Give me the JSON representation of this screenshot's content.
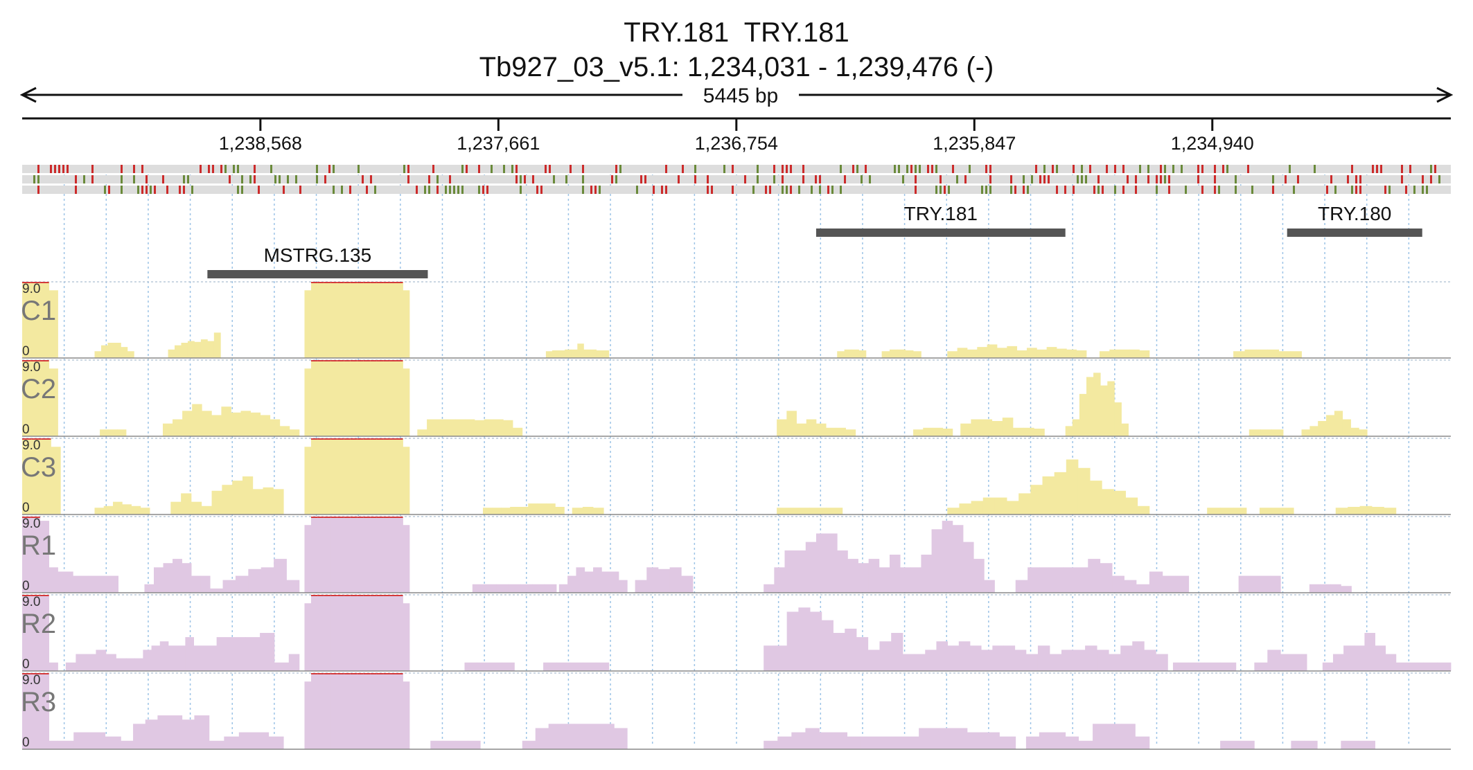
{
  "header": {
    "title_line1": "TRY.181  TRY.181",
    "title_line2": "Tb927_03_v5.1: 1,234,031 - 1,239,476 (-)"
  },
  "ruler": {
    "span_label": "5445 bp"
  },
  "chart_data": {
    "type": "area",
    "title": "TRY.181  TRY.181",
    "subtitle": "Tb927_03_v5.1: 1,234,031 - 1,239,476 (-)",
    "chromosome": "Tb927_03_v5.1",
    "strand": "-",
    "xlim": [
      1239476,
      1234031
    ],
    "x_ticks": [
      {
        "value": 1238568,
        "label": "1,238,568"
      },
      {
        "value": 1237661,
        "label": "1,237,661"
      },
      {
        "value": 1236754,
        "label": "1,236,754"
      },
      {
        "value": 1235847,
        "label": "1,235,847"
      },
      {
        "value": 1234940,
        "label": "1,234,940"
      }
    ],
    "genes": [
      {
        "name": "MSTRG.135",
        "start": 1238770,
        "end": 1237930
      },
      {
        "name": "TRY.181",
        "start": 1236450,
        "end": 1235500
      },
      {
        "name": "TRY.180",
        "start": 1234655,
        "end": 1234140
      }
    ],
    "variant_rows": 3,
    "variant_colors": {
      "red": "#cc2b2b",
      "green": "#6a8a3a"
    },
    "ylim": [
      0,
      9.0
    ],
    "y_tick_labels": [
      "9.0",
      "0"
    ],
    "tracks": [
      {
        "name": "C1",
        "color": "#f3e9a0",
        "edge": "#e6d874",
        "segments": [
          [
            1239476,
            1239340,
            [
              9.0,
              9.0,
              9.0,
              8.0
            ]
          ],
          [
            1239200,
            1239050,
            [
              0.8,
              1.5,
              1.8,
              1.8,
              1.3,
              0.8
            ]
          ],
          [
            1238920,
            1238720,
            [
              1.0,
              1.5,
              1.8,
              2.0,
              1.9,
              2.2,
              2.0,
              3.0
            ]
          ],
          [
            1238400,
            1238000,
            [
              8.0,
              9.0,
              9.0,
              9.0,
              9.0,
              9.0,
              9.0,
              9.0,
              9.0,
              9.0,
              9.0,
              9.0,
              9.0,
              9.0,
              9.0,
              8.0
            ]
          ],
          [
            1237480,
            1237240,
            [
              0.8,
              0.9,
              0.9,
              1.0,
              1.0,
              1.7,
              1.0,
              1.0,
              0.9,
              0.9
            ]
          ],
          [
            1236370,
            1236260,
            [
              0.8,
              1.0,
              1.0,
              0.9
            ]
          ],
          [
            1236200,
            1236050,
            [
              0.8,
              1.0,
              1.0,
              0.9,
              0.8
            ]
          ],
          [
            1235950,
            1235420,
            [
              0.8,
              1.2,
              1.0,
              1.3,
              1.6,
              1.2,
              1.4,
              0.9,
              1.2,
              1.0,
              1.3,
              1.1,
              1.0,
              0.9
            ]
          ],
          [
            1235370,
            1235180,
            [
              0.8,
              1.0,
              1.0,
              1.0,
              0.9
            ]
          ],
          [
            1234860,
            1234600,
            [
              0.8,
              1.0,
              1.0,
              1.0,
              0.8,
              0.8
            ]
          ]
        ]
      },
      {
        "name": "C2",
        "color": "#f3e9a0",
        "edge": "#e6d874",
        "segments": [
          [
            1239476,
            1239340,
            [
              9.0,
              9.0,
              9.0,
              8.0
            ]
          ],
          [
            1239180,
            1239080,
            [
              0.8,
              0.8,
              0.8
            ]
          ],
          [
            1238940,
            1238420,
            [
              1.5,
              2.0,
              3.0,
              3.8,
              3.0,
              2.5,
              3.5,
              2.8,
              3.0,
              2.8,
              2.5,
              2.0,
              1.2,
              0.8
            ]
          ],
          [
            1238400,
            1238000,
            [
              8.0,
              9.0,
              9.0,
              9.0,
              9.0,
              9.0,
              9.0,
              9.0,
              9.0,
              9.0,
              9.0,
              9.0,
              9.0,
              9.0,
              9.0,
              8.0
            ]
          ],
          [
            1237970,
            1237570,
            [
              0.8,
              2.0,
              2.0,
              2.0,
              2.0,
              2.0,
              1.9,
              2.0,
              2.0,
              1.9,
              1.0
            ]
          ],
          [
            1236600,
            1236300,
            [
              2.0,
              3.0,
              1.5,
              2.0,
              1.5,
              1.0,
              1.0,
              0.8
            ]
          ],
          [
            1236080,
            1235930,
            [
              0.8,
              1.0,
              1.0,
              0.9
            ]
          ],
          [
            1235900,
            1235580,
            [
              1.5,
              2.0,
              2.0,
              1.8,
              2.2,
              1.0,
              1.0,
              0.9
            ]
          ],
          [
            1235500,
            1235260,
            [
              1.2,
              2.0,
              5.0,
              7.0,
              7.5,
              6.0,
              6.5,
              4.0,
              1.5
            ]
          ],
          [
            1234800,
            1234670,
            [
              0.8,
              0.8,
              0.8
            ]
          ],
          [
            1234600,
            1234350,
            [
              0.8,
              1.2,
              1.8,
              2.5,
              3.0,
              2.0,
              1.0,
              0.8
            ]
          ]
        ]
      },
      {
        "name": "C3",
        "color": "#f3e9a0",
        "edge": "#e6d874",
        "segments": [
          [
            1239476,
            1239330,
            [
              9.0,
              9.0,
              9.0,
              8.0
            ]
          ],
          [
            1239200,
            1238990,
            [
              0.8,
              1.0,
              1.5,
              1.2,
              1.0,
              0.8
            ]
          ],
          [
            1238910,
            1238480,
            [
              1.5,
              2.5,
              1.5,
              1.0,
              2.8,
              3.5,
              4.0,
              4.5,
              3.0,
              3.2,
              3.0
            ]
          ],
          [
            1238400,
            1238000,
            [
              8.0,
              9.0,
              9.0,
              9.0,
              9.0,
              9.0,
              9.0,
              9.0,
              9.0,
              9.0,
              9.0,
              9.0,
              9.0,
              9.0,
              9.0,
              8.0
            ]
          ],
          [
            1237720,
            1237410,
            [
              0.8,
              0.8,
              0.8,
              0.9,
              0.9,
              1.3,
              1.3,
              1.3,
              0.9
            ]
          ],
          [
            1237380,
            1237260,
            [
              0.8,
              0.9,
              0.8
            ]
          ],
          [
            1236600,
            1236350,
            [
              0.8,
              0.8,
              0.8,
              0.8
            ]
          ],
          [
            1235950,
            1235180,
            [
              0.8,
              1.3,
              1.6,
              2.0,
              2.0,
              1.6,
              2.5,
              3.5,
              4.5,
              5.0,
              6.5,
              5.5,
              4.0,
              3.0,
              2.8,
              2.0,
              1.0
            ]
          ],
          [
            1234960,
            1234810,
            [
              0.8,
              0.8,
              0.8
            ]
          ],
          [
            1234760,
            1234630,
            [
              0.8,
              0.8,
              0.8
            ]
          ],
          [
            1234470,
            1234240,
            [
              0.8,
              0.9,
              1.0,
              0.9,
              0.8
            ]
          ]
        ]
      },
      {
        "name": "R1",
        "color": "#e0c8e3",
        "edge": "#c9a6cf",
        "segments": [
          [
            1239476,
            1239340,
            [
              9.0,
              9.0,
              8.5,
              3.0
            ]
          ],
          [
            1239340,
            1239110,
            [
              2.5,
              2.0,
              2.0,
              2.0
            ]
          ],
          [
            1239010,
            1238760,
            [
              1.0,
              3.0,
              3.5,
              4.0,
              3.5,
              2.0,
              2.0
            ]
          ],
          [
            1238760,
            1238420,
            [
              0.5,
              1.5,
              2.0,
              2.8,
              3.0,
              4.0,
              1.5
            ]
          ],
          [
            1238400,
            1238000,
            [
              8.0,
              9.0,
              9.0,
              9.0,
              9.0,
              9.0,
              9.0,
              9.0,
              9.0,
              9.0,
              9.0,
              9.0,
              9.0,
              9.0,
              9.0,
              8.0
            ]
          ],
          [
            1237760,
            1237440,
            [
              1.0,
              1.0,
              1.0,
              1.0,
              1.0,
              1.0,
              1.0
            ]
          ],
          [
            1237430,
            1237170,
            [
              1.0,
              2.0,
              3.0,
              2.5,
              3.0,
              2.5,
              2.5,
              1.5
            ]
          ],
          [
            1237140,
            1236920,
            [
              1.5,
              3.0,
              2.8,
              3.0,
              2.0
            ]
          ],
          [
            1236650,
            1236250,
            [
              1.0,
              3.0,
              5.0,
              5.0,
              6.0,
              7.0,
              7.0,
              5.0,
              4.0,
              3.5
            ]
          ],
          [
            1236250,
            1235770,
            [
              4.0,
              3.0,
              4.5,
              3.0,
              3.0,
              4.5,
              7.5,
              8.5,
              8.0,
              6.0,
              4.0,
              1.5
            ]
          ],
          [
            1235690,
            1235230,
            [
              1.5,
              3.0,
              3.0,
              3.0,
              3.0,
              3.0,
              4.0,
              3.5,
              2.0,
              1.5
            ]
          ],
          [
            1235230,
            1235030,
            [
              1.0,
              2.5,
              2.0,
              2.0
            ]
          ],
          [
            1234840,
            1234680,
            [
              2.0,
              2.0,
              2.0,
              2.0
            ]
          ],
          [
            1234570,
            1234410,
            [
              1.0,
              1.0,
              1.0,
              0.8
            ]
          ]
        ]
      },
      {
        "name": "R2",
        "color": "#e0c8e3",
        "edge": "#c9a6cf",
        "segments": [
          [
            1239476,
            1239340,
            [
              9.0,
              9.0,
              9.0,
              1.0
            ]
          ],
          [
            1239310,
            1239080,
            [
              1.0,
              2.0,
              2.0,
              2.5,
              2.0,
              1.5
            ]
          ],
          [
            1239080,
            1238790,
            [
              1.5,
              1.5,
              2.5,
              3.0,
              3.5,
              3.0,
              3.0,
              4.0,
              3.0
            ]
          ],
          [
            1238790,
            1238460,
            [
              3.0,
              4.0,
              4.0,
              4.0,
              4.5,
              1.0
            ]
          ],
          [
            1238460,
            1238420,
            [
              2.0
            ]
          ],
          [
            1238400,
            1238000,
            [
              8.0,
              9.0,
              9.0,
              9.0,
              9.0,
              9.0,
              9.0,
              9.0,
              9.0,
              9.0,
              9.0,
              9.0,
              9.0,
              9.0,
              9.0,
              8.0
            ]
          ],
          [
            1237790,
            1237600,
            [
              1.0,
              1.0,
              1.0,
              1.0
            ]
          ],
          [
            1237490,
            1237240,
            [
              1.0,
              1.0,
              1.0,
              1.0,
              1.0
            ]
          ],
          [
            1236650,
            1236120,
            [
              3.0,
              3.0,
              7.0,
              7.5,
              7.0,
              6.0,
              4.5,
              5.0,
              4.0,
              2.5,
              3.5,
              4.5
            ]
          ],
          [
            1236120,
            1235650,
            [
              2.0,
              2.0,
              2.5,
              3.5,
              3.0,
              3.5,
              3.0,
              2.5,
              3.0,
              3.0,
              2.5
            ]
          ],
          [
            1235650,
            1235110,
            [
              2.0,
              3.0,
              2.0,
              2.5,
              2.5,
              3.0,
              2.5,
              2.0,
              3.0,
              3.5,
              2.5,
              2.0
            ]
          ],
          [
            1235090,
            1234850,
            [
              1.0,
              1.0,
              1.0,
              1.0
            ]
          ],
          [
            1234780,
            1234580,
            [
              1.0,
              2.5,
              2.0,
              2.0
            ]
          ],
          [
            1234520,
            1234240,
            [
              1.0,
              2.0,
              3.0,
              3.0,
              4.5,
              3.0,
              2.0
            ]
          ],
          [
            1234240,
            1234031,
            [
              1.0,
              1.0,
              1.0,
              1.0
            ]
          ]
        ]
      },
      {
        "name": "R3",
        "color": "#e0c8e3",
        "edge": "#c9a6cf",
        "segments": [
          [
            1239476,
            1239340,
            [
              9.0,
              9.0,
              9.0,
              1.0
            ]
          ],
          [
            1239340,
            1239100,
            [
              1.0,
              2.0,
              2.0,
              1.5
            ]
          ],
          [
            1239100,
            1238820,
            [
              1.0,
              3.0,
              3.5,
              4.0,
              4.0,
              3.5
            ]
          ],
          [
            1238820,
            1238480,
            [
              4.0,
              1.0,
              1.5,
              2.0,
              2.0,
              1.5
            ]
          ],
          [
            1238400,
            1238000,
            [
              8.0,
              9.0,
              9.0,
              9.0,
              9.0,
              9.0,
              9.0,
              9.0,
              9.0,
              9.0,
              9.0,
              9.0,
              9.0,
              9.0,
              9.0,
              8.0
            ]
          ],
          [
            1237920,
            1237730,
            [
              1.0,
              1.0,
              1.0,
              1.0
            ]
          ],
          [
            1237570,
            1237170,
            [
              1.0,
              2.5,
              3.0,
              3.0,
              3.0,
              3.0,
              3.0,
              2.5
            ]
          ],
          [
            1236650,
            1236120,
            [
              1.0,
              1.5,
              2.0,
              2.5,
              2.0,
              2.0,
              1.5,
              1.5,
              1.5,
              1.5
            ]
          ],
          [
            1236120,
            1235690,
            [
              1.5,
              2.5,
              2.5,
              2.5,
              2.0,
              2.0,
              1.5
            ]
          ],
          [
            1235650,
            1235450,
            [
              1.5,
              2.0,
              2.0,
              1.5
            ]
          ],
          [
            1235450,
            1235180,
            [
              1.0,
              3.0,
              3.0,
              3.0,
              1.5
            ]
          ],
          [
            1234910,
            1234780,
            [
              1.0,
              1.0
            ]
          ],
          [
            1234640,
            1234540,
            [
              1.0,
              1.0
            ]
          ],
          [
            1234450,
            1234320,
            [
              1.0,
              1.0
            ]
          ]
        ]
      }
    ]
  }
}
